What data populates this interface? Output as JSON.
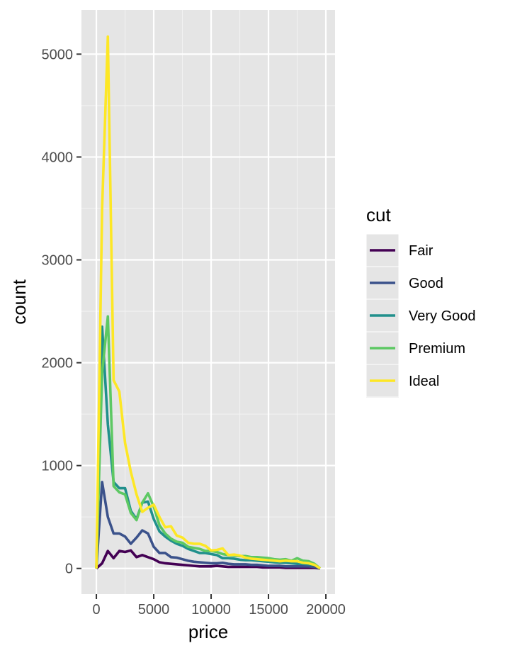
{
  "chart_data": {
    "type": "line",
    "xlabel": "price",
    "ylabel": "count",
    "xlim": [
      -1300,
      20800
    ],
    "ylim": [
      -250,
      5430
    ],
    "x_ticks": [
      0,
      5000,
      10000,
      15000,
      20000
    ],
    "x_tick_labels": [
      "0",
      "5000",
      "10000",
      "15000",
      "20000"
    ],
    "y_ticks": [
      0,
      1000,
      2000,
      3000,
      4000,
      5000
    ],
    "y_tick_labels": [
      "0",
      "1000",
      "2000",
      "3000",
      "4000",
      "5000"
    ],
    "grid": true,
    "legend": {
      "title": "cut",
      "placement": "right"
    },
    "x": [
      0,
      500,
      1000,
      1500,
      2000,
      2500,
      3000,
      3500,
      4000,
      4500,
      5000,
      5500,
      6000,
      6500,
      7000,
      7500,
      8000,
      8500,
      9000,
      9500,
      10000,
      10500,
      11000,
      11500,
      12000,
      12500,
      13000,
      13500,
      14000,
      14500,
      15000,
      15500,
      16000,
      16500,
      17000,
      17500,
      18000,
      18500,
      19000,
      19500
    ],
    "series": [
      {
        "name": "Fair",
        "color": "#440154",
        "values": [
          0,
          50,
          170,
          100,
          170,
          160,
          175,
          110,
          130,
          110,
          90,
          60,
          50,
          45,
          40,
          35,
          30,
          25,
          20,
          20,
          20,
          25,
          20,
          15,
          15,
          15,
          15,
          15,
          15,
          10,
          10,
          10,
          10,
          5,
          5,
          5,
          5,
          5,
          5,
          0
        ]
      },
      {
        "name": "Good",
        "color": "#3B528B",
        "values": [
          0,
          840,
          500,
          340,
          340,
          310,
          240,
          300,
          370,
          340,
          210,
          150,
          150,
          110,
          105,
          90,
          75,
          65,
          60,
          55,
          50,
          50,
          55,
          45,
          40,
          40,
          40,
          35,
          35,
          30,
          25,
          25,
          25,
          20,
          20,
          20,
          20,
          20,
          15,
          0
        ]
      },
      {
        "name": "Very Good",
        "color": "#21908C",
        "values": [
          0,
          2350,
          1400,
          840,
          780,
          780,
          560,
          480,
          640,
          650,
          480,
          360,
          310,
          270,
          240,
          220,
          190,
          170,
          150,
          150,
          140,
          130,
          100,
          100,
          95,
          85,
          80,
          80,
          75,
          70,
          65,
          60,
          55,
          55,
          50,
          45,
          45,
          40,
          35,
          0
        ]
      },
      {
        "name": "Premium",
        "color": "#5DC863",
        "values": [
          0,
          1900,
          2450,
          800,
          740,
          720,
          540,
          470,
          640,
          730,
          600,
          420,
          340,
          290,
          260,
          250,
          210,
          200,
          190,
          170,
          170,
          160,
          140,
          130,
          125,
          120,
          120,
          110,
          110,
          105,
          100,
          90,
          85,
          90,
          75,
          100,
          75,
          70,
          45,
          0
        ]
      },
      {
        "name": "Ideal",
        "color": "#FDE725",
        "values": [
          0,
          3500,
          5170,
          1830,
          1720,
          1220,
          940,
          720,
          550,
          590,
          620,
          500,
          400,
          410,
          320,
          300,
          250,
          240,
          240,
          220,
          175,
          180,
          195,
          130,
          135,
          125,
          105,
          95,
          90,
          85,
          80,
          75,
          70,
          75,
          70,
          70,
          55,
          50,
          35,
          0
        ]
      }
    ]
  }
}
